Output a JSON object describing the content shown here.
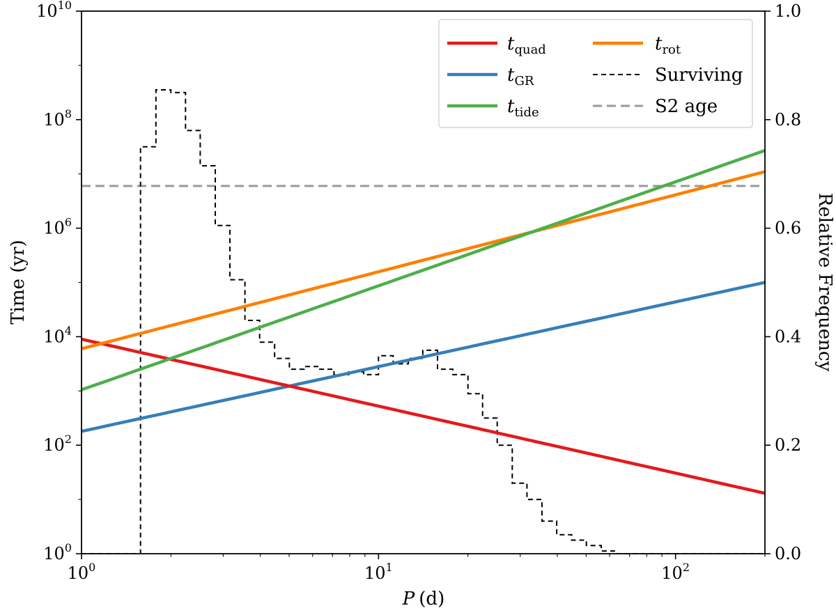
{
  "chart_data": {
    "type": "line",
    "xscale": "log",
    "yscale": "log",
    "xlim": [
      1,
      200
    ],
    "ylim": [
      1,
      10000000000
    ],
    "y2lim": [
      0.0,
      1.0
    ],
    "xlabel": {
      "var": "P",
      "unit": "(d)"
    },
    "ylabel": "Time (yr)",
    "y2label": "Relative Frequency",
    "xticks": [
      {
        "value": 1,
        "base": "10",
        "exp": "0"
      },
      {
        "value": 10,
        "base": "10",
        "exp": "1"
      },
      {
        "value": 100,
        "base": "10",
        "exp": "2"
      }
    ],
    "yticks": [
      {
        "value": 1,
        "base": "10",
        "exp": "0"
      },
      {
        "value": 100,
        "base": "10",
        "exp": "2"
      },
      {
        "value": 10000,
        "base": "10",
        "exp": "4"
      },
      {
        "value": 1000000,
        "base": "10",
        "exp": "6"
      },
      {
        "value": 100000000,
        "base": "10",
        "exp": "8"
      },
      {
        "value": 10000000000,
        "base": "10",
        "exp": "10"
      }
    ],
    "y2ticks": [
      "0.0",
      "0.2",
      "0.4",
      "0.6",
      "0.8",
      "1.0"
    ],
    "legend_position": "top-right",
    "series": [
      {
        "name": "t_quad",
        "label_main": "t",
        "label_sub": "quad",
        "color": "#e41a1c",
        "style": "solid",
        "axis": "left",
        "points": [
          [
            1,
            9000
          ],
          [
            200,
            13
          ]
        ]
      },
      {
        "name": "t_GR",
        "label_main": "t",
        "label_sub": "GR",
        "color": "#377eb8",
        "style": "solid",
        "axis": "left",
        "points": [
          [
            1,
            180
          ],
          [
            200,
            100000
          ]
        ]
      },
      {
        "name": "t_tide",
        "label_main": "t",
        "label_sub": "tide",
        "color": "#4daf4a",
        "style": "solid",
        "axis": "left",
        "points": [
          [
            1,
            1050
          ],
          [
            200,
            27000000
          ]
        ]
      },
      {
        "name": "t_rot",
        "label_main": "t",
        "label_sub": "rot",
        "color": "#ff7f00",
        "style": "solid",
        "axis": "left",
        "points": [
          [
            1,
            6000
          ],
          [
            200,
            11000000
          ]
        ]
      },
      {
        "name": "Surviving",
        "label_main": "Surviving",
        "label_sub": "",
        "color": "#000000",
        "style": "dashed-step",
        "axis": "right",
        "bin_edges": [
          1.0,
          1.26,
          1.58,
          1.78,
          2.0,
          2.24,
          2.51,
          2.82,
          3.16,
          3.55,
          3.98,
          4.47,
          5.01,
          5.62,
          6.31,
          7.08,
          7.94,
          8.91,
          10.0,
          11.2,
          12.6,
          14.1,
          15.8,
          17.8,
          20.0,
          22.4,
          25.1,
          28.2,
          31.6,
          35.5,
          39.8,
          44.7,
          50.1,
          56.2,
          63.1,
          200
        ],
        "freq": [
          0.0,
          0.0,
          0.75,
          0.855,
          0.85,
          0.78,
          0.715,
          0.605,
          0.505,
          0.43,
          0.39,
          0.36,
          0.34,
          0.345,
          0.34,
          0.33,
          0.335,
          0.33,
          0.365,
          0.35,
          0.36,
          0.375,
          0.34,
          0.33,
          0.295,
          0.25,
          0.2,
          0.13,
          0.1,
          0.06,
          0.035,
          0.025,
          0.015,
          0.005,
          0.0
        ]
      },
      {
        "name": "S2 age",
        "label_main": "S2 age",
        "label_sub": "",
        "color": "#999999",
        "style": "dashed",
        "axis": "left",
        "points": [
          [
            1,
            6000000
          ],
          [
            200,
            6000000
          ]
        ]
      }
    ]
  }
}
